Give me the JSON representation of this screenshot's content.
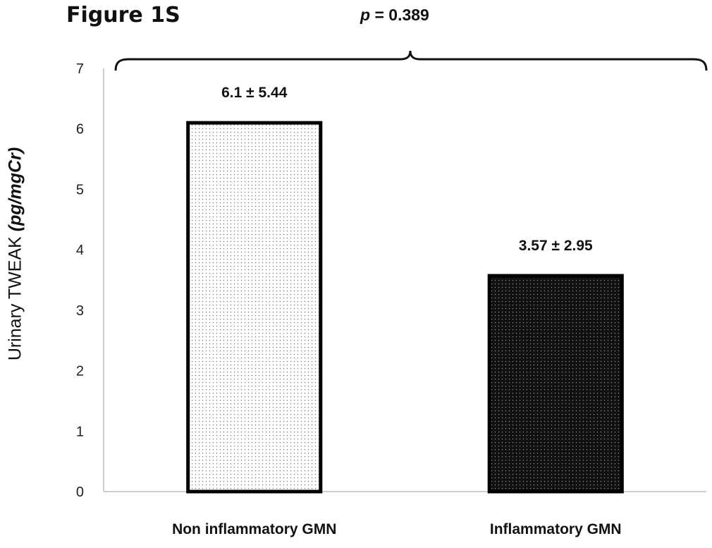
{
  "figure_label": "Figure 1S",
  "significance": {
    "symbol": "p",
    "text": " = 0.389"
  },
  "colors": {
    "light_fill": "#ffffff",
    "light_dot": "#7a7a7a",
    "dark_fill": "#111111",
    "dark_dot": "#8a8a8a",
    "bar_edge": "#000000",
    "axis": "#bdbdbd"
  },
  "chart_data": {
    "type": "bar",
    "title": "",
    "ylabel_main": "Urinary TWEAK ",
    "ylabel_unit": "(pg/mgCr)",
    "xlabel": "",
    "categories": [
      "Non inflammatory GMN",
      "Inflammatory GMN"
    ],
    "values": [
      6.1,
      3.57
    ],
    "data_labels": [
      "6.1 ± 5.44",
      "3.57 ± 2.95"
    ],
    "ylim": [
      0,
      7
    ],
    "yticks": [
      "0",
      "1",
      "2",
      "3",
      "4",
      "5",
      "6",
      "7"
    ],
    "grid": false,
    "bar_patterns": [
      "light-dotted",
      "dark-dotted"
    ]
  }
}
